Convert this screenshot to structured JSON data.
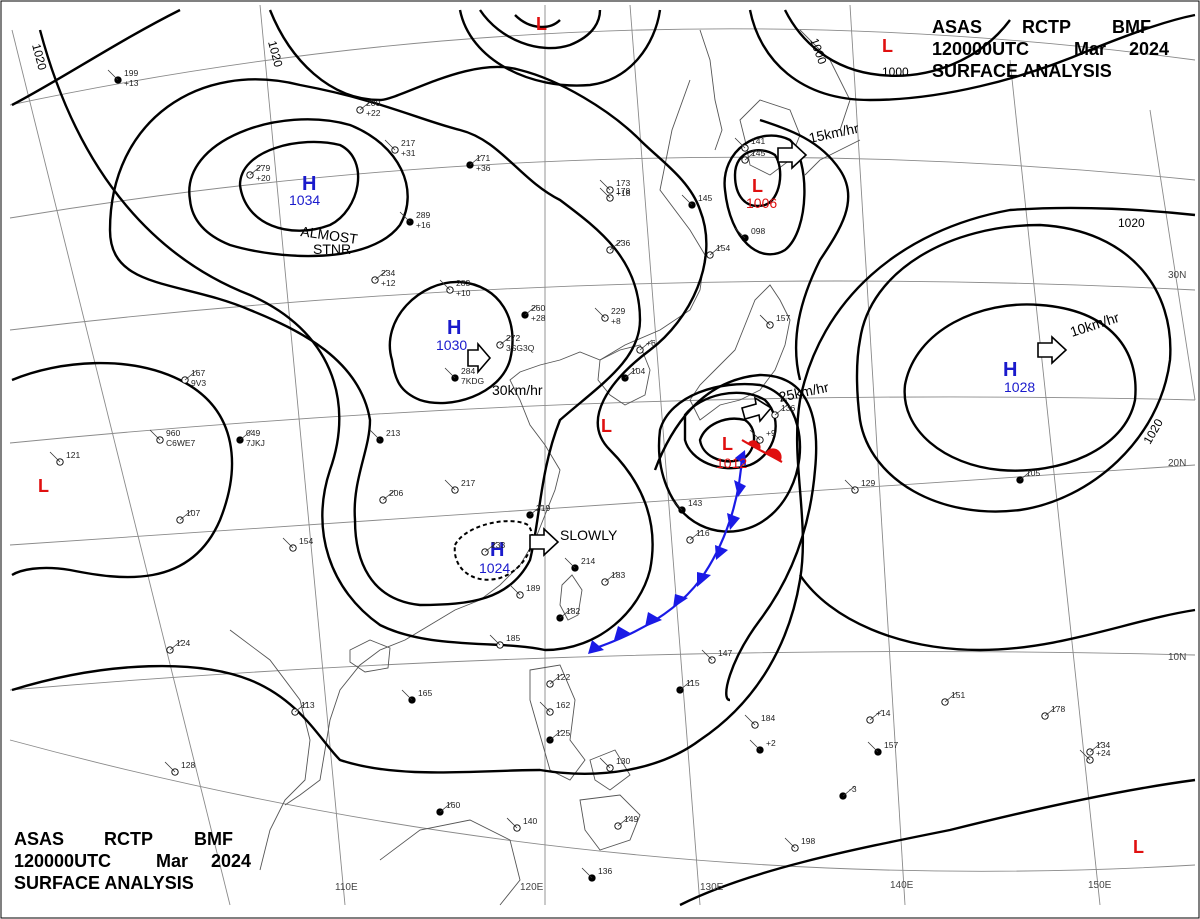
{
  "header": {
    "line1": [
      "ASAS",
      "RCTP",
      "BMF"
    ],
    "line2": [
      "120000UTC",
      "Mar",
      "2024"
    ],
    "line3": "SURFACE ANALYSIS"
  },
  "colors": {
    "high": "#1a1acc",
    "low": "#e01010",
    "front_cold": "#1a1ae6",
    "front_warm": "#e01010",
    "isobar": "#000000",
    "grid": "#777777",
    "land": "#555555"
  },
  "isobar_labels": [
    "1020",
    "1020",
    "1000",
    "1000",
    "1020",
    "1020"
  ],
  "pressure_centers": [
    {
      "type": "H",
      "value": "1034"
    },
    {
      "type": "H",
      "value": "1030"
    },
    {
      "type": "H",
      "value": "1024"
    },
    {
      "type": "H",
      "value": "1028"
    },
    {
      "type": "L",
      "value": "1006"
    },
    {
      "type": "L",
      "value": "1012"
    },
    {
      "type": "L",
      "value": ""
    },
    {
      "type": "L",
      "value": ""
    },
    {
      "type": "L",
      "value": ""
    },
    {
      "type": "L",
      "value": ""
    },
    {
      "type": "L",
      "value": ""
    }
  ],
  "motion_labels": [
    "ALMOST",
    "STNR",
    "30km/hr",
    "SLOWLY",
    "15km/hr",
    "25km/hr",
    "10km/hr"
  ],
  "lat_labels": [
    "30N",
    "20N",
    "10N"
  ],
  "lon_labels": [
    "110E",
    "120E",
    "130E",
    "140E",
    "150E"
  ],
  "station_samples": [
    "199",
    "200",
    "217",
    "171",
    "173",
    "279",
    "289",
    "234",
    "283",
    "260",
    "229",
    "272",
    "284",
    "167",
    "960",
    "049",
    "121",
    "107",
    "213",
    "206",
    "217",
    "219",
    "154",
    "233",
    "214",
    "183",
    "189",
    "182",
    "185",
    "124",
    "165",
    "113",
    "128",
    "160",
    "140",
    "149",
    "136",
    "122",
    "162",
    "125",
    "130",
    "145",
    "145",
    "154",
    "141",
    "104",
    "157",
    "136",
    "143",
    "116",
    "147",
    "115",
    "184",
    "151",
    "157",
    "134",
    "129",
    "105",
    "198",
    "236",
    "098",
    "178",
    "178",
    "-3",
    "+9",
    "+6",
    "+2",
    "+14",
    "+24",
    "+13",
    "+22",
    "+31",
    "+36",
    "+18",
    "+20",
    "+16",
    "+12",
    "+10",
    "+28",
    "+8",
    "3SG3Q",
    "7KDG",
    "9V3",
    "C6WE7",
    "7JKJ"
  ]
}
